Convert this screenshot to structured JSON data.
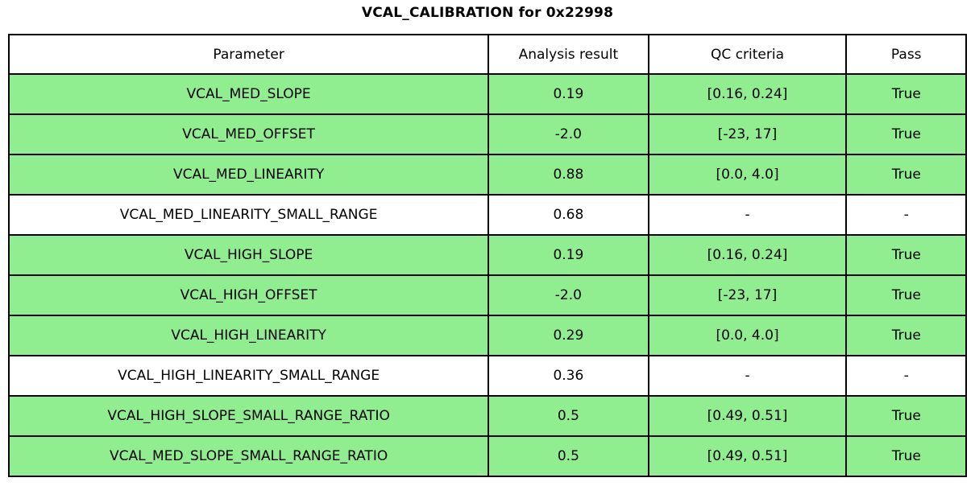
{
  "title": "VCAL_CALIBRATION for 0x22998",
  "colors": {
    "pass_row_background": "#90ee90",
    "neutral_row_background": "#ffffff",
    "border": "#000000",
    "text": "#000000"
  },
  "table": {
    "headers": [
      "Parameter",
      "Analysis result",
      "QC criteria",
      "Pass"
    ],
    "rows": [
      {
        "parameter": "VCAL_MED_SLOPE",
        "analysis_result": "0.19",
        "qc_criteria": "[0.16, 0.24]",
        "pass": "True",
        "highlighted": true
      },
      {
        "parameter": "VCAL_MED_OFFSET",
        "analysis_result": "-2.0",
        "qc_criteria": "[-23, 17]",
        "pass": "True",
        "highlighted": true
      },
      {
        "parameter": "VCAL_MED_LINEARITY",
        "analysis_result": "0.88",
        "qc_criteria": "[0.0, 4.0]",
        "pass": "True",
        "highlighted": true
      },
      {
        "parameter": "VCAL_MED_LINEARITY_SMALL_RANGE",
        "analysis_result": "0.68",
        "qc_criteria": "-",
        "pass": "-",
        "highlighted": false
      },
      {
        "parameter": "VCAL_HIGH_SLOPE",
        "analysis_result": "0.19",
        "qc_criteria": "[0.16, 0.24]",
        "pass": "True",
        "highlighted": true
      },
      {
        "parameter": "VCAL_HIGH_OFFSET",
        "analysis_result": "-2.0",
        "qc_criteria": "[-23, 17]",
        "pass": "True",
        "highlighted": true
      },
      {
        "parameter": "VCAL_HIGH_LINEARITY",
        "analysis_result": "0.29",
        "qc_criteria": "[0.0, 4.0]",
        "pass": "True",
        "highlighted": true
      },
      {
        "parameter": "VCAL_HIGH_LINEARITY_SMALL_RANGE",
        "analysis_result": "0.36",
        "qc_criteria": "-",
        "pass": "-",
        "highlighted": false
      },
      {
        "parameter": "VCAL_HIGH_SLOPE_SMALL_RANGE_RATIO",
        "analysis_result": "0.5",
        "qc_criteria": "[0.49, 0.51]",
        "pass": "True",
        "highlighted": true
      },
      {
        "parameter": "VCAL_MED_SLOPE_SMALL_RANGE_RATIO",
        "analysis_result": "0.5",
        "qc_criteria": "[0.49, 0.51]",
        "pass": "True",
        "highlighted": true
      }
    ]
  },
  "chart_data": {
    "type": "table",
    "title": "VCAL_CALIBRATION for 0x22998",
    "columns": [
      "Parameter",
      "Analysis result",
      "QC criteria",
      "Pass"
    ],
    "rows": [
      [
        "VCAL_MED_SLOPE",
        0.19,
        "[0.16, 0.24]",
        "True"
      ],
      [
        "VCAL_MED_OFFSET",
        -2.0,
        "[-23, 17]",
        "True"
      ],
      [
        "VCAL_MED_LINEARITY",
        0.88,
        "[0.0, 4.0]",
        "True"
      ],
      [
        "VCAL_MED_LINEARITY_SMALL_RANGE",
        0.68,
        "-",
        "-"
      ],
      [
        "VCAL_HIGH_SLOPE",
        0.19,
        "[0.16, 0.24]",
        "True"
      ],
      [
        "VCAL_HIGH_OFFSET",
        -2.0,
        "[-23, 17]",
        "True"
      ],
      [
        "VCAL_HIGH_LINEARITY",
        0.29,
        "[0.0, 4.0]",
        "True"
      ],
      [
        "VCAL_HIGH_LINEARITY_SMALL_RANGE",
        0.36,
        "-",
        "-"
      ],
      [
        "VCAL_HIGH_SLOPE_SMALL_RANGE_RATIO",
        0.5,
        "[0.49, 0.51]",
        "True"
      ],
      [
        "VCAL_MED_SLOPE_SMALL_RANGE_RATIO",
        0.5,
        "[0.49, 0.51]",
        "True"
      ]
    ],
    "layout": {
      "highlight_color": "#90ee90",
      "grid": true,
      "cell_text_align": "center"
    }
  }
}
